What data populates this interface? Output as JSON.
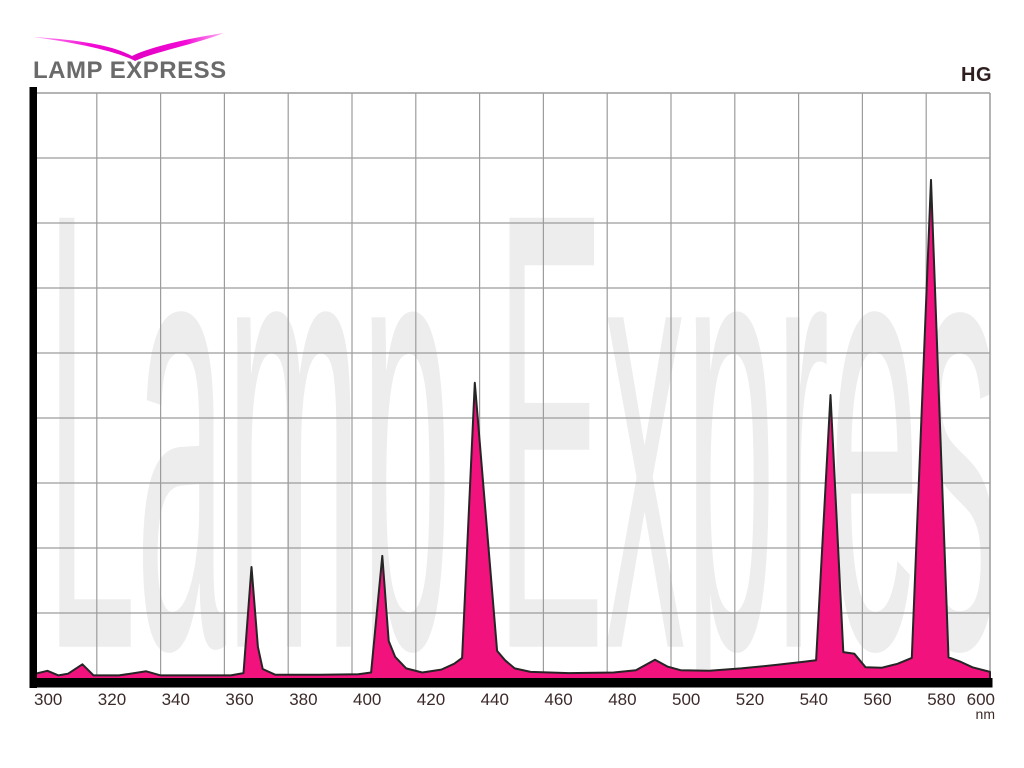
{
  "header": {
    "brand": "LAMP EXPRESS",
    "lamp_code": "HG"
  },
  "watermark_text": "Lamp Express",
  "colors": {
    "spectrum_fill": "#F1127E",
    "spectrum_outline": "#252525",
    "grid_line": "#9C9C9C",
    "axis_bar": "#000000",
    "tick_text": "#3C2A2A",
    "brand_text": "#6A6A6A",
    "lamp_code_text": "#2E1E1E",
    "watermark": "#EDEDED",
    "swoosh_light": "#FF9BF2",
    "swoosh_dark": "#E300C4"
  },
  "chart_data": {
    "type": "area",
    "title": "",
    "xlabel": "",
    "ylabel": "",
    "x_unit": "nm",
    "x_range": [
      300,
      600
    ],
    "y_range": [
      0,
      1
    ],
    "grid": "on",
    "grid_rows": 9,
    "x_ticks": [
      300,
      320,
      340,
      360,
      380,
      400,
      420,
      440,
      460,
      480,
      500,
      520,
      540,
      560,
      580,
      600
    ],
    "series": [
      {
        "name": "HG",
        "points": [
          [
            300,
            0.003
          ],
          [
            304.5,
            0.009
          ],
          [
            308,
            0.001
          ],
          [
            311,
            0.004
          ],
          [
            315.5,
            0.02
          ],
          [
            319,
            0.001
          ],
          [
            327,
            0.001
          ],
          [
            335.5,
            0.008
          ],
          [
            340,
            0.001
          ],
          [
            350,
            0.001
          ],
          [
            362,
            0.001
          ],
          [
            366,
            0.005
          ],
          [
            368.5,
            0.187
          ],
          [
            370.5,
            0.05
          ],
          [
            372,
            0.012
          ],
          [
            376,
            0.002
          ],
          [
            390,
            0.002
          ],
          [
            402,
            0.003
          ],
          [
            406,
            0.006
          ],
          [
            409.5,
            0.206
          ],
          [
            411.5,
            0.06
          ],
          [
            413.5,
            0.033
          ],
          [
            417,
            0.013
          ],
          [
            422,
            0.006
          ],
          [
            428,
            0.011
          ],
          [
            432,
            0.021
          ],
          [
            434.5,
            0.031
          ],
          [
            438.5,
            0.503
          ],
          [
            445.5,
            0.043
          ],
          [
            448,
            0.027
          ],
          [
            451,
            0.013
          ],
          [
            456,
            0.007
          ],
          [
            468,
            0.005
          ],
          [
            482,
            0.006
          ],
          [
            489,
            0.01
          ],
          [
            495,
            0.028
          ],
          [
            499,
            0.016
          ],
          [
            503,
            0.01
          ],
          [
            512,
            0.009
          ],
          [
            522,
            0.013
          ],
          [
            533,
            0.019
          ],
          [
            541,
            0.024
          ],
          [
            545.5,
            0.027
          ],
          [
            550,
            0.482
          ],
          [
            554,
            0.041
          ],
          [
            557.5,
            0.038
          ],
          [
            561,
            0.015
          ],
          [
            566,
            0.014
          ],
          [
            571,
            0.021
          ],
          [
            575.5,
            0.031
          ],
          [
            581.5,
            0.851
          ],
          [
            587,
            0.032
          ],
          [
            590.5,
            0.025
          ],
          [
            594.5,
            0.015
          ],
          [
            600,
            0.007
          ]
        ]
      }
    ]
  }
}
